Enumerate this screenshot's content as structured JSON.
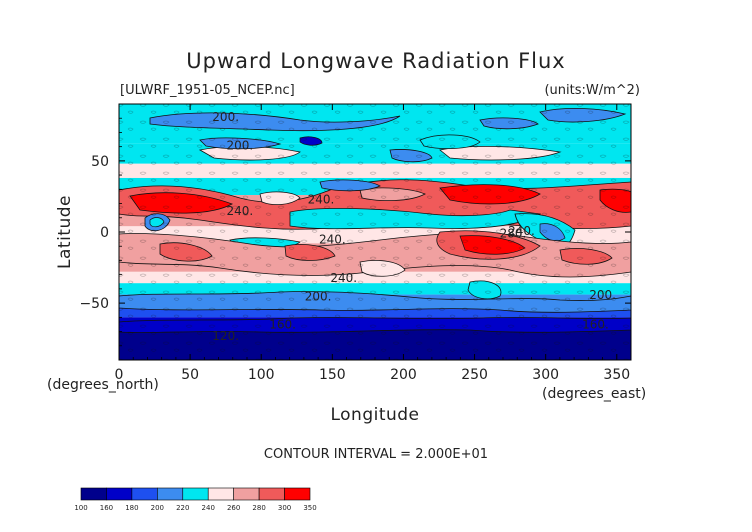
{
  "chart_data": {
    "type": "contour",
    "title": "Upward Longwave Radiation Flux",
    "dataset": "[ULWRF_1951-05_NCEP.nc]",
    "units": "(units:W/m^2)",
    "xlabel": "Longitude",
    "ylabel": "Latitude",
    "x_unit_label": "(degrees_east)",
    "y_unit_label": "(degrees_north)",
    "xlim": [
      0,
      360
    ],
    "ylim": [
      -90,
      90
    ],
    "x_ticks": [
      0,
      50,
      100,
      150,
      200,
      250,
      300,
      350
    ],
    "y_ticks": [
      50,
      0,
      -50
    ],
    "contour_interval_text": "CONTOUR INTERVAL = 2.000E+01",
    "contour_labels": [
      {
        "text": "200.",
        "lon": 75,
        "lat": 78
      },
      {
        "text": "200.",
        "lon": 85,
        "lat": 58
      },
      {
        "text": "240.",
        "lon": 85,
        "lat": 12
      },
      {
        "text": "240.",
        "lon": 142,
        "lat": 20
      },
      {
        "text": "240.",
        "lon": 150,
        "lat": -8
      },
      {
        "text": "240.",
        "lon": 158,
        "lat": -35
      },
      {
        "text": "200.",
        "lon": 140,
        "lat": -48
      },
      {
        "text": "160.",
        "lon": 115,
        "lat": -68
      },
      {
        "text": "120.",
        "lon": 75,
        "lat": -76
      },
      {
        "text": "280.",
        "lon": 277,
        "lat": -4
      },
      {
        "text": "240.",
        "lon": 283,
        "lat": -2
      },
      {
        "text": "200.",
        "lon": 340,
        "lat": -47
      },
      {
        "text": "160.",
        "lon": 335,
        "lat": -68
      }
    ],
    "colorbar": {
      "levels": [
        "100",
        "160",
        "180",
        "200",
        "220",
        "240",
        "260",
        "280",
        "300",
        "350"
      ],
      "colors": [
        "#00008c",
        "#0000c8",
        "#1e50f0",
        "#3c8cf0",
        "#00e6f0",
        "#ffe6e6",
        "#f0a0a0",
        "#f05a5a",
        "#ff0000"
      ]
    }
  }
}
